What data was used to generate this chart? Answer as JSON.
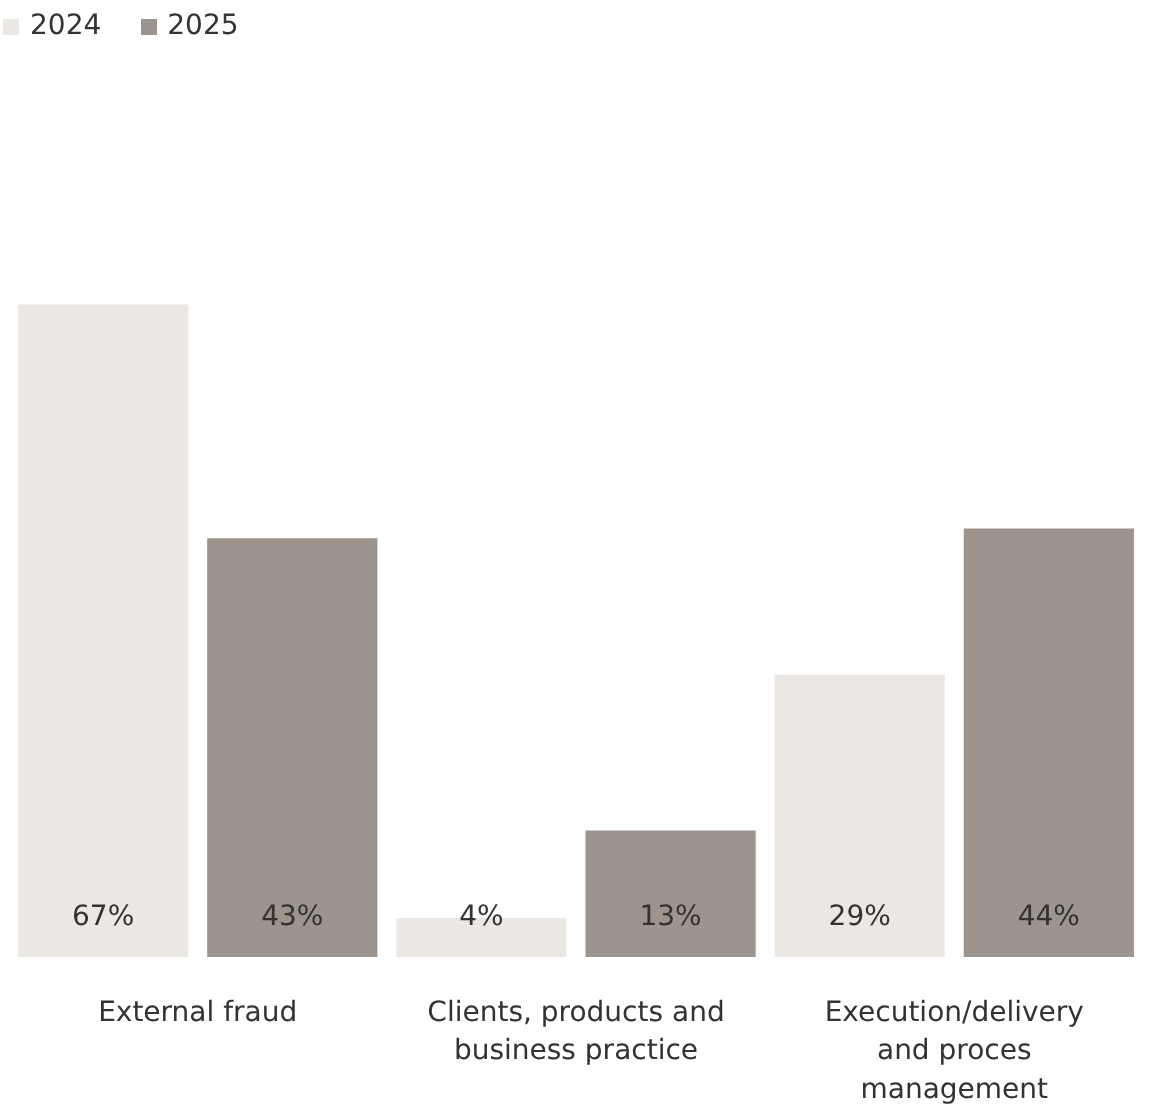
{
  "chart_data": {
    "type": "bar",
    "categories": [
      "External fraud",
      "Clients, products and\nbusiness practice",
      "Execution/delivery\nand proces\nmanagement"
    ],
    "series": [
      {
        "name": "2024",
        "color": "#ebe8e3",
        "values": [
          67,
          4,
          29
        ],
        "value_labels": [
          "67%",
          "4%",
          "29%"
        ]
      },
      {
        "name": "2025",
        "color": "#9d948d",
        "values": [
          43,
          13,
          44
        ],
        "value_labels": [
          "43%",
          "13%",
          "44%"
        ]
      }
    ],
    "legend": "top left"
  }
}
